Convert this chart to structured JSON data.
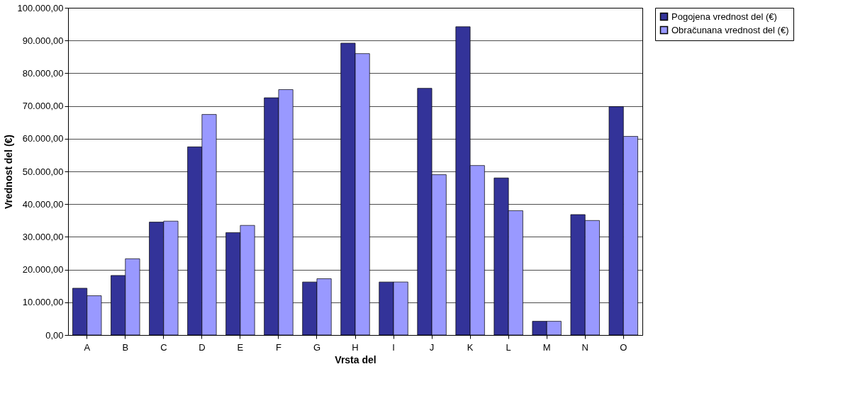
{
  "chart_data": {
    "type": "bar",
    "xlabel": "Vrsta del",
    "ylabel": "Vrednost del (€)",
    "categories": [
      "A",
      "B",
      "C",
      "D",
      "E",
      "F",
      "G",
      "H",
      "I",
      "J",
      "K",
      "L",
      "M",
      "N",
      "O"
    ],
    "series": [
      {
        "name": "Pogojena vrednost del (€)",
        "color": "#333399",
        "values": [
          14300,
          18200,
          34500,
          57500,
          31300,
          72500,
          16200,
          89200,
          16200,
          75400,
          94200,
          48000,
          4200,
          36800,
          69800
        ]
      },
      {
        "name": "Obračunana vrednost del (€)",
        "color": "#9999ff",
        "values": [
          12000,
          23300,
          34800,
          67400,
          33500,
          75000,
          17200,
          86000,
          16200,
          49000,
          51800,
          38000,
          4200,
          35000,
          60700
        ]
      }
    ],
    "ylim": [
      0,
      100000
    ],
    "yticks": [
      {
        "value": 0,
        "label": "0,00"
      },
      {
        "value": 10000,
        "label": "10.000,00"
      },
      {
        "value": 20000,
        "label": "20.000,00"
      },
      {
        "value": 30000,
        "label": "30.000,00"
      },
      {
        "value": 40000,
        "label": "40.000,00"
      },
      {
        "value": 50000,
        "label": "50.000,00"
      },
      {
        "value": 60000,
        "label": "60.000,00"
      },
      {
        "value": 70000,
        "label": "70.000,00"
      },
      {
        "value": 80000,
        "label": "80.000,00"
      },
      {
        "value": 90000,
        "label": "90.000,00"
      },
      {
        "value": 100000,
        "label": "100.000,00"
      }
    ],
    "grid": "y",
    "legend": "right"
  }
}
